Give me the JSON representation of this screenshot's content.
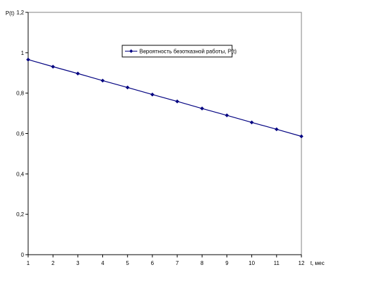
{
  "chart_data": {
    "type": "line",
    "title": "",
    "xlabel": "t, мес",
    "ylabel": "P(t)",
    "x": [
      1,
      2,
      3,
      4,
      5,
      6,
      7,
      8,
      9,
      10,
      11,
      12
    ],
    "x_ticks": [
      "1",
      "2",
      "3",
      "4",
      "5",
      "6",
      "7",
      "8",
      "9",
      "10",
      "11",
      "12"
    ],
    "xlim": [
      1,
      12
    ],
    "ylim": [
      0,
      1.2
    ],
    "y_ticks": [
      0,
      0.2,
      0.4,
      0.6,
      0.8,
      1,
      1.2
    ],
    "y_tick_labels": [
      "0",
      "0,2",
      "0,4",
      "0,6",
      "0,8",
      "1",
      "1,2"
    ],
    "grid": false,
    "legend_position": "top-center",
    "series": [
      {
        "name": "Вероятность безотказной работы, P(t)",
        "color": "#000080",
        "marker": "diamond",
        "values": [
          0.966,
          0.931,
          0.897,
          0.862,
          0.828,
          0.793,
          0.759,
          0.724,
          0.69,
          0.655,
          0.621,
          0.586
        ]
      }
    ]
  }
}
